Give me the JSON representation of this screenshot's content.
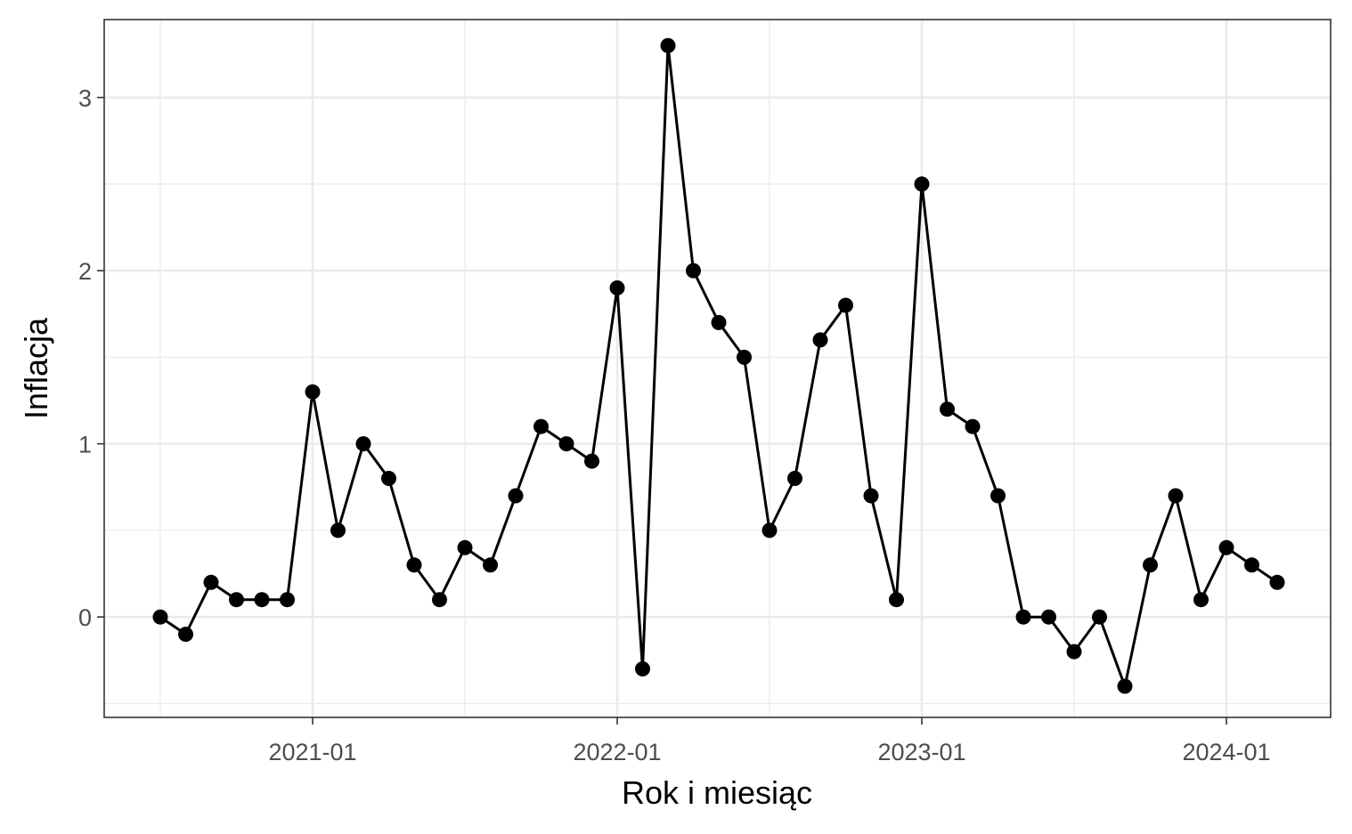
{
  "chart_data": {
    "type": "line",
    "title": "",
    "xlabel": "Rok i miesiąc",
    "ylabel": "Inflacja",
    "x": [
      "2020-07",
      "2020-08",
      "2020-09",
      "2020-10",
      "2020-11",
      "2020-12",
      "2021-01",
      "2021-02",
      "2021-03",
      "2021-04",
      "2021-05",
      "2021-06",
      "2021-07",
      "2021-08",
      "2021-09",
      "2021-10",
      "2021-11",
      "2021-12",
      "2022-01",
      "2022-02",
      "2022-03",
      "2022-04",
      "2022-05",
      "2022-06",
      "2022-07",
      "2022-08",
      "2022-09",
      "2022-10",
      "2022-11",
      "2022-12",
      "2023-01",
      "2023-02",
      "2023-03",
      "2023-04",
      "2023-05",
      "2023-06",
      "2023-07",
      "2023-08",
      "2023-09",
      "2023-10",
      "2023-11",
      "2023-12",
      "2024-01",
      "2024-02",
      "2024-03"
    ],
    "series": [
      {
        "values": [
          0,
          -0.1,
          0.2,
          0.1,
          0.1,
          0.1,
          1.3,
          0.5,
          1.0,
          0.8,
          0.3,
          0.1,
          0.4,
          0.3,
          0.7,
          1.1,
          1.0,
          0.9,
          1.9,
          -0.3,
          3.3,
          2.0,
          1.7,
          1.5,
          0.5,
          0.8,
          1.6,
          1.8,
          0.7,
          0.1,
          2.5,
          1.2,
          1.1,
          0.7,
          0.0,
          0.0,
          -0.2,
          0.0,
          -0.4,
          0.3,
          0.7,
          0.1,
          0.4,
          0.3,
          0.2
        ],
        "color": "#000000"
      }
    ],
    "x_ticks": [
      "2021-01",
      "2022-01",
      "2023-01",
      "2024-01"
    ],
    "y_ticks": [
      "0",
      "1",
      "2",
      "3"
    ],
    "ylim": [
      -0.58,
      3.45
    ],
    "grid": true,
    "legend": "none",
    "theme": "bw"
  }
}
